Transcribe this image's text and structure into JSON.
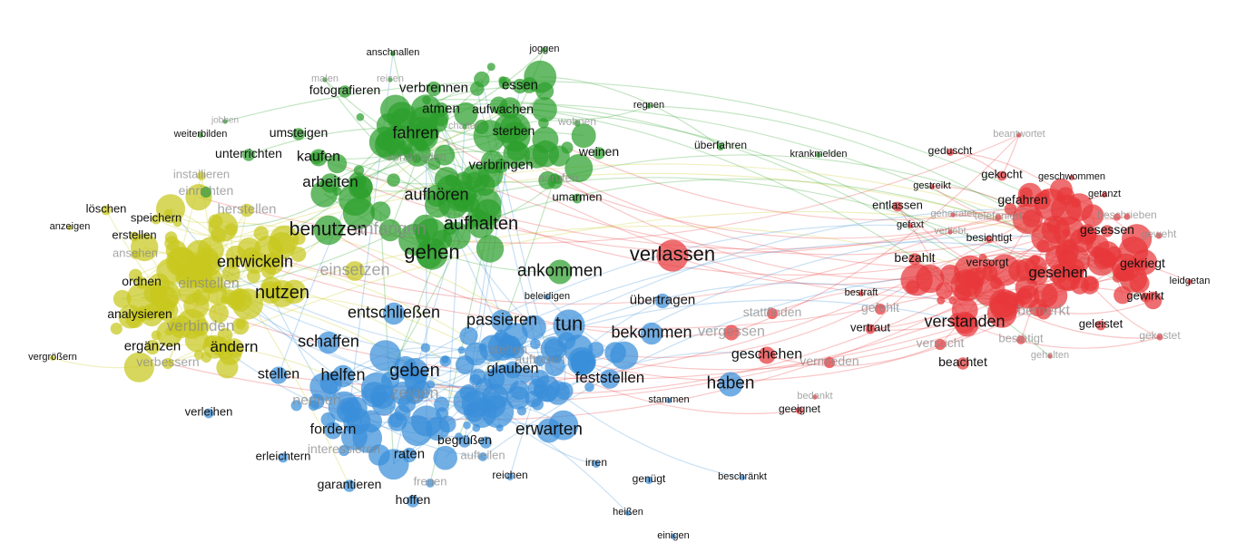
{
  "view": {
    "title": "",
    "background": "#ffffff"
  },
  "clusters": {
    "green": {
      "color": "#2ca02c"
    },
    "yellow": {
      "color": "#c8c81e"
    },
    "blue": {
      "color": "#3a8fd9"
    },
    "red": {
      "color": "#e8373a"
    }
  },
  "labels": {
    "green": [
      "anschnallen",
      "joggen",
      "fotografieren",
      "verbrennen",
      "essen",
      "atmen",
      "aufwachen",
      "umsteigen",
      "fahren",
      "sterben",
      "kaufen",
      "unterrichten",
      "verbringen",
      "weinen",
      "arbeiten",
      "aufhören",
      "umarmen",
      "benutzen",
      "aufhalten",
      "gehen",
      "ankommen",
      "regnen",
      "überfahren",
      "krankmelden",
      "weiterbilden",
      "jobben",
      "wohnen",
      "chatten",
      "einrichten",
      "reisen",
      "malen",
      "anrufen",
      "verabreden",
      "anfangen"
    ],
    "yellow": [
      "löschen",
      "speichern",
      "anzeigen",
      "erstellen",
      "ansehen",
      "entwickeln",
      "einsetzen",
      "nutzen",
      "ordnen",
      "einstellen",
      "analysieren",
      "verbinden",
      "ergänzen",
      "ändern",
      "vergrößern",
      "verbessern",
      "herstellen",
      "installieren"
    ],
    "blue": [
      "entschließen",
      "schaffen",
      "passieren",
      "tun",
      "bekommen",
      "übertragen",
      "beleidigen",
      "helfen",
      "stellen",
      "geben",
      "glauben",
      "feststellen",
      "haben",
      "nennen",
      "zeigen",
      "verleihen",
      "fordern",
      "erwarten",
      "begrüßen",
      "raten",
      "erleichtern",
      "stammen",
      "irren",
      "reichen",
      "genügt",
      "beschränkt",
      "garantieren",
      "hoffen",
      "heißen",
      "einigen",
      "interessieren",
      "auftreten",
      "stehen",
      "freuen",
      "aufteilen"
    ],
    "red": [
      "verlassen",
      "geduscht",
      "gekocht",
      "geschwommen",
      "gestreikt",
      "gefahren",
      "getanzt",
      "entlassen",
      "gefaxt",
      "besichtigt",
      "gesessen",
      "geweht",
      "bezahlt",
      "versorgt",
      "gesehen",
      "gekriegt",
      "leidgetan",
      "bestraft",
      "gewirkt",
      "verstanden",
      "geleistet",
      "vertraut",
      "versucht",
      "beachtet",
      "geschehen",
      "vermieden",
      "bedankt",
      "geeignet",
      "stattfinden",
      "vergessen",
      "telefoniert",
      "verliebt",
      "gefehlt",
      "geheiratet",
      "bemerkt",
      "beantwortet",
      "bestätigt",
      "gehalten",
      "beschrieben",
      "gekostet"
    ]
  }
}
